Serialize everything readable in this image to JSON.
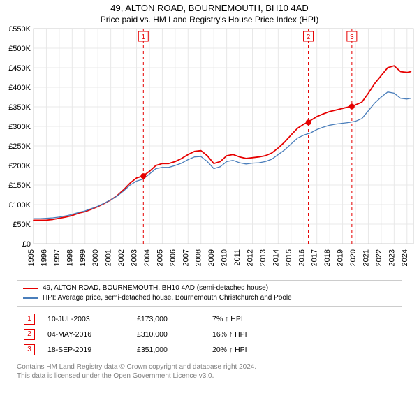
{
  "title_main": "49, ALTON ROAD, BOURNEMOUTH, BH10 4AD",
  "title_sub": "Price paid vs. HM Land Registry's House Price Index (HPI)",
  "chart": {
    "type": "line",
    "background_color": "#ffffff",
    "grid_color": "#e8e8e8",
    "grid_opacity": 1,
    "axis_color": "#000000",
    "xlim": [
      1995,
      2024.5
    ],
    "ylim": [
      0,
      550000
    ],
    "ytick_step": 50000,
    "yticks_labels": [
      "£0",
      "£50K",
      "£100K",
      "£150K",
      "£200K",
      "£250K",
      "£300K",
      "£350K",
      "£400K",
      "£450K",
      "£500K",
      "£550K"
    ],
    "xticks": [
      1995,
      1996,
      1997,
      1998,
      1999,
      2000,
      2001,
      2002,
      2003,
      2004,
      2005,
      2006,
      2007,
      2008,
      2009,
      2010,
      2011,
      2012,
      2013,
      2014,
      2015,
      2016,
      2017,
      2018,
      2019,
      2020,
      2021,
      2022,
      2023,
      2024
    ],
    "label_fontsize": 11,
    "marker_line_color": "#e60000",
    "marker_line_dash": "4,4",
    "marker_dot_color": "#e60000",
    "marker_dot_radius": 4,
    "marker_box_border": "#e60000",
    "marker_box_text": "#e60000",
    "series": [
      {
        "name": "49, ALTON ROAD, BOURNEMOUTH, BH10 4AD (semi-detached house)",
        "color": "#e60000",
        "width": 1.8,
        "points": [
          [
            1995.0,
            60000
          ],
          [
            1995.5,
            60000
          ],
          [
            1996.0,
            60000
          ],
          [
            1996.5,
            62000
          ],
          [
            1997.0,
            65000
          ],
          [
            1997.5,
            68000
          ],
          [
            1998.0,
            72000
          ],
          [
            1998.5,
            78000
          ],
          [
            1999.0,
            82000
          ],
          [
            1999.5,
            88000
          ],
          [
            2000.0,
            95000
          ],
          [
            2000.5,
            103000
          ],
          [
            2001.0,
            112000
          ],
          [
            2001.5,
            123000
          ],
          [
            2002.0,
            138000
          ],
          [
            2002.5,
            155000
          ],
          [
            2003.0,
            168000
          ],
          [
            2003.5,
            173000
          ],
          [
            2004.0,
            185000
          ],
          [
            2004.5,
            200000
          ],
          [
            2005.0,
            205000
          ],
          [
            2005.5,
            205000
          ],
          [
            2006.0,
            210000
          ],
          [
            2006.5,
            218000
          ],
          [
            2007.0,
            228000
          ],
          [
            2007.5,
            236000
          ],
          [
            2008.0,
            238000
          ],
          [
            2008.5,
            225000
          ],
          [
            2009.0,
            205000
          ],
          [
            2009.5,
            210000
          ],
          [
            2010.0,
            225000
          ],
          [
            2010.5,
            228000
          ],
          [
            2011.0,
            222000
          ],
          [
            2011.5,
            218000
          ],
          [
            2012.0,
            220000
          ],
          [
            2012.5,
            222000
          ],
          [
            2013.0,
            225000
          ],
          [
            2013.5,
            232000
          ],
          [
            2014.0,
            245000
          ],
          [
            2014.5,
            260000
          ],
          [
            2015.0,
            278000
          ],
          [
            2015.5,
            295000
          ],
          [
            2016.0,
            306000
          ],
          [
            2016.33,
            310000
          ],
          [
            2016.5,
            315000
          ],
          [
            2017.0,
            325000
          ],
          [
            2017.5,
            332000
          ],
          [
            2018.0,
            338000
          ],
          [
            2018.5,
            342000
          ],
          [
            2019.0,
            346000
          ],
          [
            2019.5,
            350000
          ],
          [
            2019.72,
            351000
          ],
          [
            2020.0,
            355000
          ],
          [
            2020.5,
            362000
          ],
          [
            2021.0,
            385000
          ],
          [
            2021.5,
            410000
          ],
          [
            2022.0,
            430000
          ],
          [
            2022.5,
            450000
          ],
          [
            2023.0,
            455000
          ],
          [
            2023.5,
            440000
          ],
          [
            2024.0,
            438000
          ],
          [
            2024.3,
            440000
          ]
        ]
      },
      {
        "name": "HPI: Average price, semi-detached house, Bournemouth Christchurch and Poole",
        "color": "#4a7ebb",
        "width": 1.3,
        "points": [
          [
            1995.0,
            64000
          ],
          [
            1995.5,
            64000
          ],
          [
            1996.0,
            65000
          ],
          [
            1996.5,
            66000
          ],
          [
            1997.0,
            68000
          ],
          [
            1997.5,
            71000
          ],
          [
            1998.0,
            75000
          ],
          [
            1998.5,
            80000
          ],
          [
            1999.0,
            84000
          ],
          [
            1999.5,
            90000
          ],
          [
            2000.0,
            96000
          ],
          [
            2000.5,
            104000
          ],
          [
            2001.0,
            112000
          ],
          [
            2001.5,
            122000
          ],
          [
            2002.0,
            135000
          ],
          [
            2002.5,
            150000
          ],
          [
            2003.0,
            160000
          ],
          [
            2003.5,
            165000
          ],
          [
            2004.0,
            178000
          ],
          [
            2004.5,
            192000
          ],
          [
            2005.0,
            195000
          ],
          [
            2005.5,
            195000
          ],
          [
            2006.0,
            200000
          ],
          [
            2006.5,
            206000
          ],
          [
            2007.0,
            215000
          ],
          [
            2007.5,
            222000
          ],
          [
            2008.0,
            223000
          ],
          [
            2008.5,
            210000
          ],
          [
            2009.0,
            192000
          ],
          [
            2009.5,
            197000
          ],
          [
            2010.0,
            210000
          ],
          [
            2010.5,
            213000
          ],
          [
            2011.0,
            207000
          ],
          [
            2011.5,
            204000
          ],
          [
            2012.0,
            206000
          ],
          [
            2012.5,
            207000
          ],
          [
            2013.0,
            210000
          ],
          [
            2013.5,
            216000
          ],
          [
            2014.0,
            228000
          ],
          [
            2014.5,
            240000
          ],
          [
            2015.0,
            255000
          ],
          [
            2015.5,
            270000
          ],
          [
            2016.0,
            278000
          ],
          [
            2016.5,
            283000
          ],
          [
            2017.0,
            292000
          ],
          [
            2017.5,
            298000
          ],
          [
            2018.0,
            303000
          ],
          [
            2018.5,
            306000
          ],
          [
            2019.0,
            308000
          ],
          [
            2019.5,
            310000
          ],
          [
            2020.0,
            313000
          ],
          [
            2020.5,
            320000
          ],
          [
            2021.0,
            340000
          ],
          [
            2021.5,
            360000
          ],
          [
            2022.0,
            375000
          ],
          [
            2022.5,
            388000
          ],
          [
            2023.0,
            385000
          ],
          [
            2023.5,
            372000
          ],
          [
            2024.0,
            370000
          ],
          [
            2024.3,
            372000
          ]
        ]
      }
    ],
    "sales_markers": [
      {
        "idx": 1,
        "x": 2003.53,
        "y": 173000
      },
      {
        "idx": 2,
        "x": 2016.34,
        "y": 310000
      },
      {
        "idx": 3,
        "x": 2019.72,
        "y": 351000
      }
    ]
  },
  "legend": {
    "rows": [
      {
        "color": "#e60000",
        "label": "49, ALTON ROAD, BOURNEMOUTH, BH10 4AD (semi-detached house)"
      },
      {
        "color": "#4a7ebb",
        "label": "HPI: Average price, semi-detached house, Bournemouth Christchurch and Poole"
      }
    ]
  },
  "sales_table": {
    "index_color": "#e60000",
    "arrow": "↑",
    "hpi_label": "HPI",
    "rows": [
      {
        "idx": "1",
        "date": "10-JUL-2003",
        "price": "£173,000",
        "diff": "7%"
      },
      {
        "idx": "2",
        "date": "04-MAY-2016",
        "price": "£310,000",
        "diff": "16%"
      },
      {
        "idx": "3",
        "date": "18-SEP-2019",
        "price": "£351,000",
        "diff": "20%"
      }
    ]
  },
  "footnote_line1": "Contains HM Land Registry data © Crown copyright and database right 2024.",
  "footnote_line2": "This data is licensed under the Open Government Licence v3.0."
}
